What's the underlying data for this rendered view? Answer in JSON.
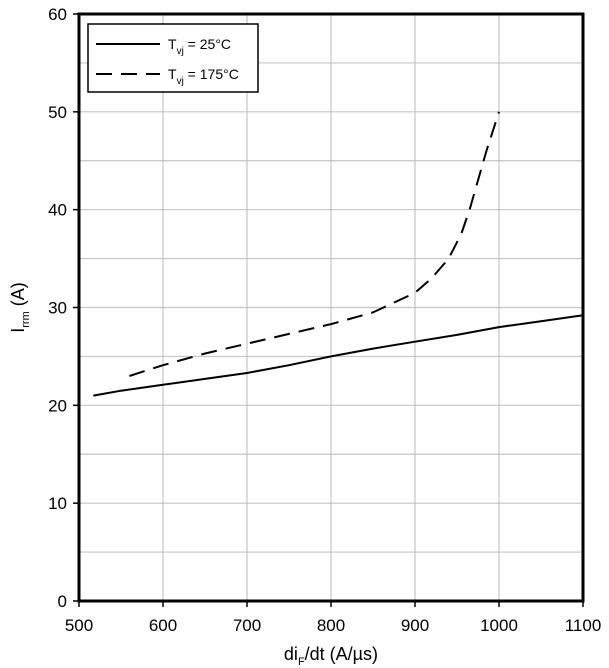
{
  "chart_data": {
    "type": "line",
    "xlabel": "di_F/dt (A/µs)",
    "xlabel_main": "di",
    "xlabel_sub": "F",
    "xlabel_rest": "/dt (A/µs)",
    "ylabel": "I_rrm (A)",
    "ylabel_main": "I",
    "ylabel_sub": "rrm",
    "ylabel_rest": " (A)",
    "xlim": [
      500,
      1100
    ],
    "ylim": [
      0,
      60
    ],
    "x_ticks": [
      500,
      600,
      700,
      800,
      900,
      1000,
      1100
    ],
    "y_ticks": [
      0,
      10,
      20,
      30,
      40,
      50,
      60
    ],
    "grid": true,
    "legend_position": "top-left",
    "series": [
      {
        "name": "T_vj = 25°C",
        "name_main": "T",
        "name_sub": "vj",
        "name_rest": " = 25°C",
        "line_style": "solid",
        "x": [
          517,
          550,
          600,
          650,
          700,
          750,
          800,
          850,
          900,
          950,
          1000,
          1050,
          1100
        ],
        "y": [
          21.0,
          21.5,
          22.1,
          22.7,
          23.3,
          24.1,
          25.0,
          25.8,
          26.5,
          27.2,
          28.0,
          28.6,
          29.2
        ]
      },
      {
        "name": "T_vj = 175°C",
        "name_main": "T",
        "name_sub": "vj",
        "name_rest": " = 175°C",
        "line_style": "dashed",
        "x": [
          560,
          600,
          650,
          700,
          750,
          800,
          850,
          900,
          920,
          940,
          955,
          965,
          975,
          985,
          1000
        ],
        "y": [
          23.0,
          24.1,
          25.3,
          26.3,
          27.3,
          28.3,
          29.5,
          31.5,
          33.0,
          35.0,
          37.5,
          40.0,
          43.0,
          46.0,
          50.0
        ]
      }
    ]
  }
}
